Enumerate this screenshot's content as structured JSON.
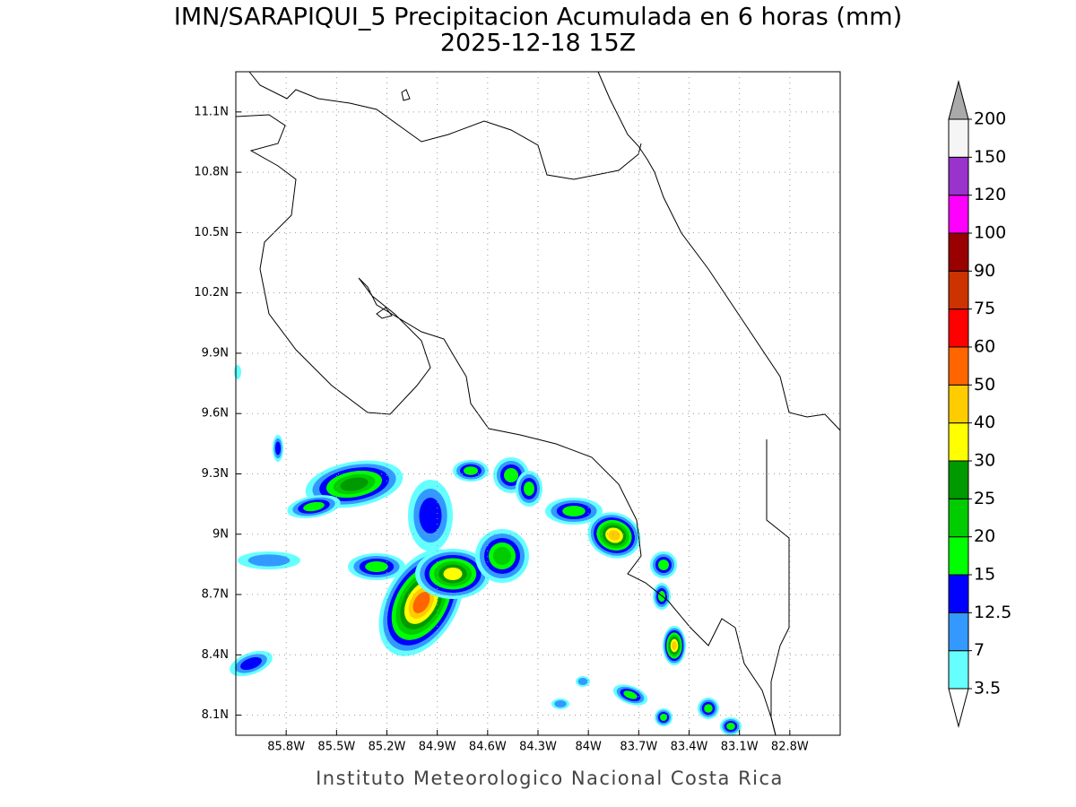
{
  "map": {
    "title": "IMN/SARAPIQUI_5 Precipitacion Acumulada en 6 horas (mm)",
    "subtitle": "2025-12-18 15Z",
    "footer": "Instituto Meteorologico Nacional Costa Rica",
    "xlim": [
      -86.1,
      -82.5
    ],
    "ylim": [
      8.0,
      11.3
    ],
    "grid": true,
    "xticks": [
      {
        "value": -85.8,
        "label": "85.8W"
      },
      {
        "value": -85.5,
        "label": "85.5W"
      },
      {
        "value": -85.2,
        "label": "85.2W"
      },
      {
        "value": -84.9,
        "label": "84.9W"
      },
      {
        "value": -84.6,
        "label": "84.6W"
      },
      {
        "value": -84.3,
        "label": "84.3W"
      },
      {
        "value": -84.0,
        "label": "84W"
      },
      {
        "value": -83.7,
        "label": "83.7W"
      },
      {
        "value": -83.4,
        "label": "83.4W"
      },
      {
        "value": -83.1,
        "label": "83.1W"
      },
      {
        "value": -82.8,
        "label": "82.8W"
      }
    ],
    "yticks": [
      {
        "value": 8.1,
        "label": "8.1N"
      },
      {
        "value": 8.4,
        "label": "8.4N"
      },
      {
        "value": 8.7,
        "label": "8.7N"
      },
      {
        "value": 9.0,
        "label": "9N"
      },
      {
        "value": 9.3,
        "label": "9.3N"
      },
      {
        "value": 9.6,
        "label": "9.6N"
      },
      {
        "value": 9.9,
        "label": "9.9N"
      },
      {
        "value": 10.2,
        "label": "10.2N"
      },
      {
        "value": 10.5,
        "label": "10.5N"
      },
      {
        "value": 10.8,
        "label": "10.8N"
      },
      {
        "value": 11.1,
        "label": "11.1N"
      }
    ],
    "colorbar": {
      "levels": [
        3.5,
        7,
        12.5,
        15,
        20,
        25,
        30,
        40,
        50,
        60,
        75,
        90,
        100,
        120,
        150,
        200
      ],
      "colors": [
        "#66ffff",
        "#3399ff",
        "#0000ff",
        "#00ff00",
        "#00cc00",
        "#009900",
        "#ffff00",
        "#ffcc00",
        "#ff6600",
        "#ff0000",
        "#cc3300",
        "#990000",
        "#ff00ff",
        "#9933cc",
        "#f5f5f5"
      ],
      "under_color": "#ffffff",
      "over_color": "#aaaaaa"
    }
  }
}
